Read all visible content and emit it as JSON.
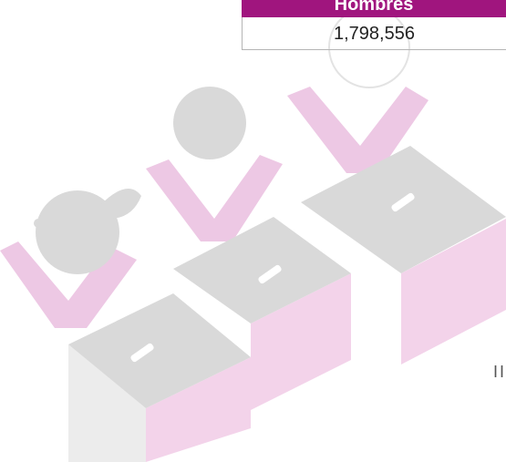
{
  "table": {
    "header": "Hombres",
    "value": "1,798,556"
  },
  "partial_text": "II"
}
